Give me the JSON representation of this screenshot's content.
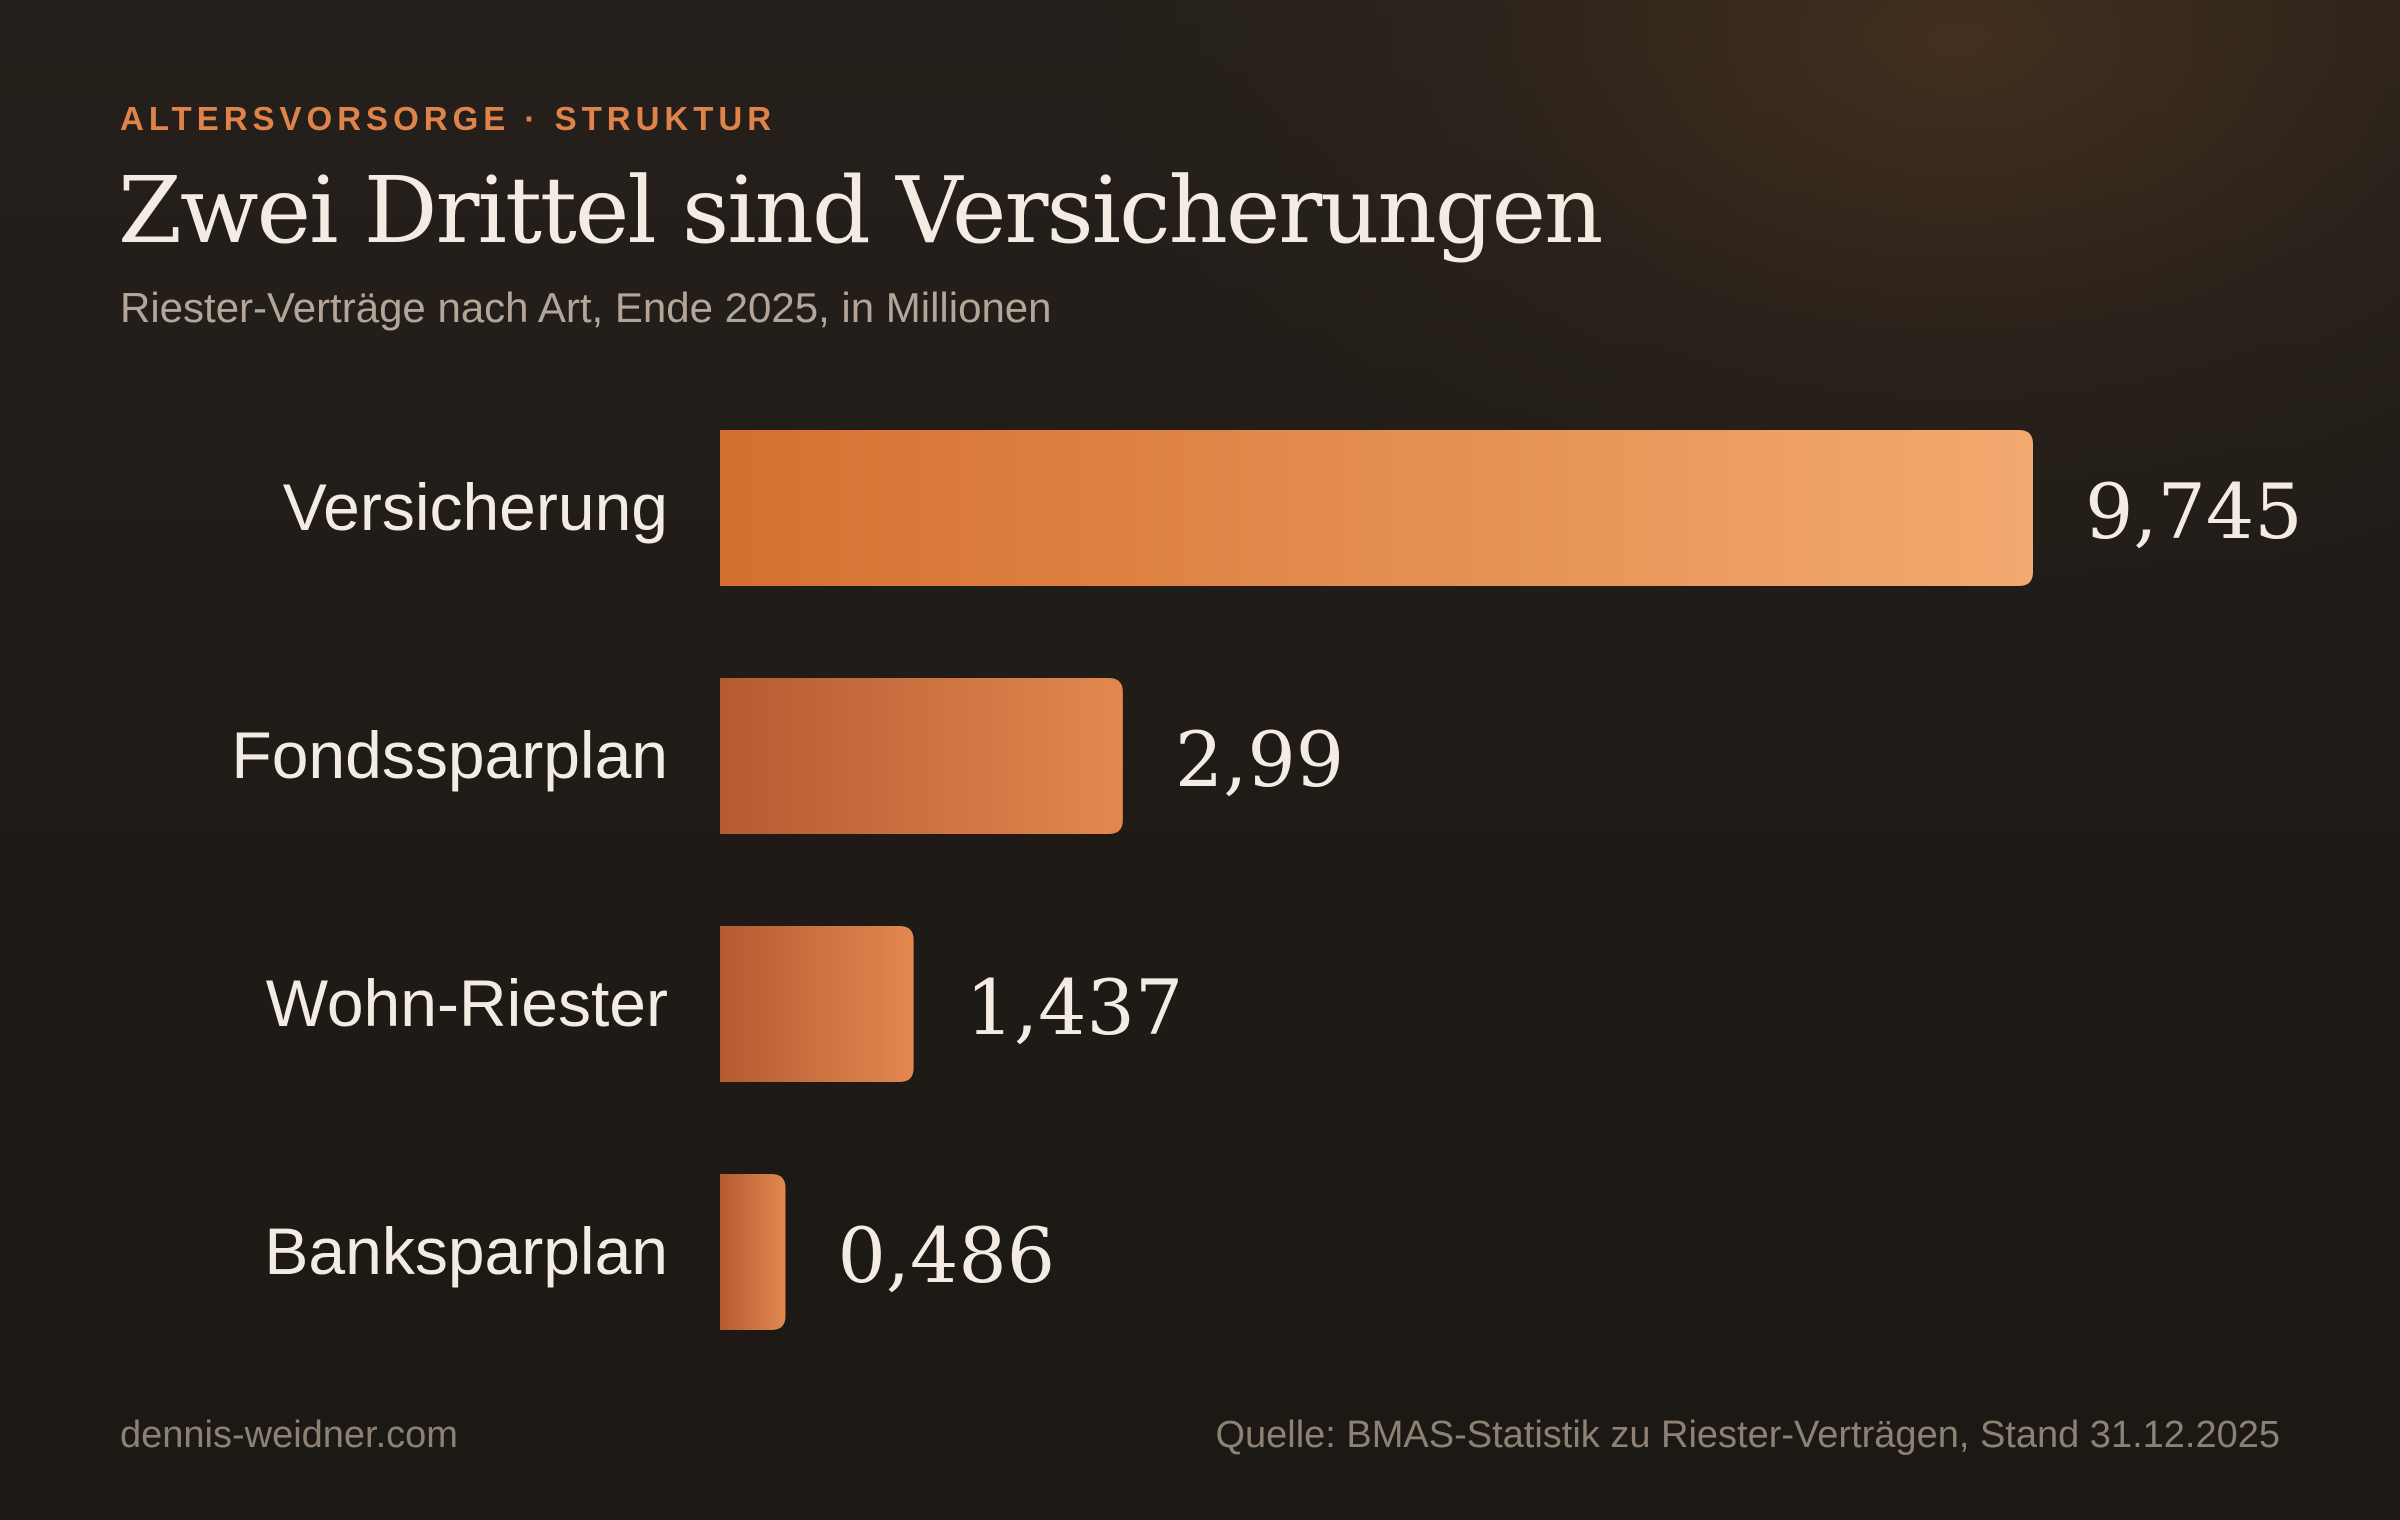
{
  "header": {
    "kicker": "ALTERSVORSORGE · STRUKTUR",
    "title": "Zwei Drittel sind Versicherungen",
    "subtitle": "Riester-Verträge nach Art, Ende 2025, in Millionen"
  },
  "footer": {
    "site": "dennis-weidner.com",
    "source": "Quelle: BMAS-Statistik zu Riester-Verträgen, Stand 31.12.2025"
  },
  "colors": {
    "accent": "#e0834a",
    "bar_dark": "#b85a30",
    "bar_mid": "#d9763a",
    "bar_light": "#f3aa70",
    "text": "#f4ece3",
    "muted": "#b3a699"
  },
  "chart_data": {
    "type": "bar",
    "orientation": "horizontal",
    "categories": [
      "Versicherung",
      "Fondssparplan",
      "Wohn-Riester",
      "Banksparplan"
    ],
    "values": [
      9.745,
      2.99,
      1.437,
      0.486
    ],
    "value_labels": [
      "9,745",
      "2,99",
      "1,437",
      "0,486"
    ],
    "title": "Zwei Drittel sind Versicherungen",
    "subtitle": "Riester-Verträge nach Art, Ende 2025, in Millionen",
    "xlim": [
      0,
      9.745
    ],
    "grid": false,
    "legend": "none"
  }
}
